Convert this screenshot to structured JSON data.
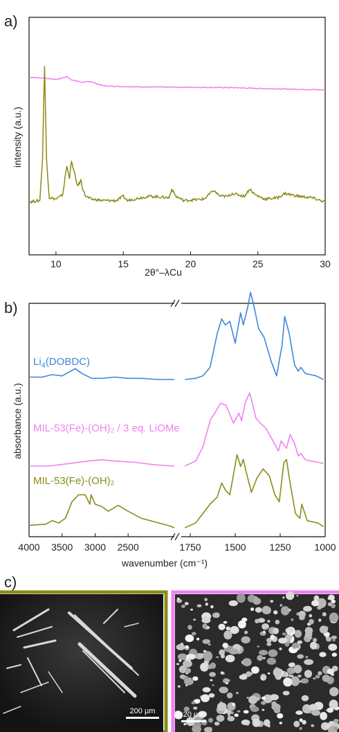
{
  "panels": {
    "a": "a)",
    "b": "b)",
    "c": "c)"
  },
  "chart_data": [
    {
      "type": "line",
      "panel": "a)",
      "xlabel": "2θ°–λCu",
      "ylabel": "intensity (a.u.)",
      "xlim": [
        8,
        30
      ],
      "xticks": [
        "10",
        "15",
        "20",
        "25",
        "30"
      ],
      "series": [
        {
          "color": "#ee82ee",
          "x": [
            8,
            9,
            10,
            10.5,
            10.8,
            11.2,
            12,
            12.6,
            13,
            13.5,
            14,
            15,
            17,
            20,
            23,
            25,
            27,
            30
          ],
          "y": [
            0.92,
            0.915,
            0.905,
            0.915,
            0.925,
            0.9,
            0.885,
            0.89,
            0.875,
            0.862,
            0.858,
            0.855,
            0.852,
            0.85,
            0.848,
            0.842,
            0.838,
            0.832
          ]
        },
        {
          "color": "#8b8b1a",
          "x": [
            8,
            8.8,
            9.0,
            9.15,
            9.3,
            9.5,
            10,
            10.5,
            10.8,
            11.0,
            11.15,
            11.35,
            11.6,
            11.85,
            12.0,
            12.2,
            12.6,
            13.5,
            14.5,
            15.0,
            15.3,
            16.3,
            17,
            18.4,
            18.6,
            18.9,
            19.5,
            21.0,
            21.7,
            22.2,
            22.8,
            23.1,
            24.0,
            24.4,
            24.8,
            25.5,
            26.5,
            27,
            28,
            29,
            30
          ],
          "y": [
            0.05,
            0.06,
            0.35,
            1.0,
            0.35,
            0.08,
            0.07,
            0.1,
            0.3,
            0.22,
            0.33,
            0.26,
            0.16,
            0.2,
            0.14,
            0.09,
            0.07,
            0.06,
            0.06,
            0.09,
            0.06,
            0.08,
            0.09,
            0.08,
            0.14,
            0.09,
            0.06,
            0.07,
            0.13,
            0.09,
            0.09,
            0.11,
            0.09,
            0.14,
            0.1,
            0.07,
            0.08,
            0.11,
            0.09,
            0.08,
            0.05
          ]
        }
      ]
    },
    {
      "type": "line",
      "panel": "b)",
      "xlabel": "wavenumber (cm⁻¹)",
      "ylabel": "absorbance (a.u.)",
      "axis_break": true,
      "xticks": [
        "4000",
        "3500",
        "3000",
        "2500",
        "1750",
        "1500",
        "1250",
        "1000"
      ],
      "series": [
        {
          "name": "Li₄(DOBDC)",
          "color": "#3f87d8",
          "hi": {
            "x": [
              4000,
              3800,
              3650,
              3500,
              3300,
              3200,
              3050,
              2900,
              2700,
              2500,
              2300,
              2050,
              1800
            ],
            "y": [
              0.02,
              0.02,
              0.04,
              0.03,
              0.09,
              0.05,
              0.01,
              0.01,
              0.02,
              0.01,
              0.01,
              0.0,
              0.0
            ]
          },
          "lo": {
            "x": [
              1780,
              1720,
              1680,
              1640,
              1600,
              1575,
              1555,
              1530,
              1500,
              1470,
              1455,
              1430,
              1415,
              1395,
              1370,
              1340,
              1300,
              1270,
              1240,
              1225,
              1200,
              1170,
              1150,
              1135,
              1110,
              1080,
              1050,
              1010
            ],
            "y": [
              0.0,
              0.01,
              0.03,
              0.1,
              0.38,
              0.5,
              0.45,
              0.48,
              0.3,
              0.55,
              0.45,
              0.6,
              0.72,
              0.6,
              0.42,
              0.35,
              0.15,
              0.03,
              0.28,
              0.52,
              0.38,
              0.12,
              0.07,
              0.1,
              0.05,
              0.04,
              0.03,
              0.0
            ]
          }
        },
        {
          "name": "MIL-53(Fe)-(OH)₂ / 3 eq. LiOMe",
          "color": "#ee82ee",
          "hi": {
            "x": [
              4000,
              3700,
              3400,
              3100,
              2900,
              2700,
              2400,
              2100,
              1800
            ],
            "y": [
              0.0,
              0.0,
              0.02,
              0.04,
              0.05,
              0.04,
              0.03,
              0.01,
              0.0
            ]
          },
          "lo": {
            "x": [
              1780,
              1720,
              1680,
              1640,
              1610,
              1580,
              1550,
              1510,
              1480,
              1465,
              1445,
              1420,
              1405,
              1385,
              1360,
              1330,
              1290,
              1260,
              1245,
              1215,
              1195,
              1170,
              1150,
              1135,
              1110,
              1080,
              1040,
              1010
            ],
            "y": [
              0.0,
              0.04,
              0.15,
              0.36,
              0.43,
              0.5,
              0.48,
              0.34,
              0.42,
              0.36,
              0.5,
              0.58,
              0.5,
              0.38,
              0.34,
              0.3,
              0.2,
              0.12,
              0.2,
              0.14,
              0.25,
              0.18,
              0.08,
              0.1,
              0.05,
              0.04,
              0.03,
              0.02
            ]
          }
        },
        {
          "name": "MIL-53(Fe)-(OH)₂",
          "color": "#8b8b1a",
          "hi": {
            "x": [
              4000,
              3750,
              3650,
              3550,
              3450,
              3350,
              3250,
              3150,
              3080,
              3060,
              3000,
              2900,
              2800,
              2650,
              2500,
              2300,
              2100,
              1900,
              1800
            ],
            "y": [
              0.02,
              0.03,
              0.06,
              0.04,
              0.08,
              0.22,
              0.28,
              0.28,
              0.2,
              0.28,
              0.2,
              0.18,
              0.14,
              0.19,
              0.14,
              0.08,
              0.05,
              0.02,
              0.0
            ]
          },
          "lo": {
            "x": [
              1780,
              1720,
              1680,
              1640,
              1600,
              1575,
              1555,
              1530,
              1510,
              1490,
              1470,
              1455,
              1440,
              1410,
              1380,
              1345,
              1310,
              1280,
              1255,
              1230,
              1215,
              1195,
              1165,
              1140,
              1130,
              1100,
              1070,
              1040,
              1010
            ],
            "y": [
              0.0,
              0.04,
              0.12,
              0.2,
              0.26,
              0.38,
              0.32,
              0.28,
              0.45,
              0.62,
              0.52,
              0.58,
              0.48,
              0.3,
              0.42,
              0.5,
              0.44,
              0.28,
              0.22,
              0.55,
              0.58,
              0.38,
              0.12,
              0.08,
              0.2,
              0.06,
              0.05,
              0.04,
              0.01
            ]
          }
        }
      ]
    }
  ],
  "sem": [
    {
      "scale_label": "200 µm",
      "border_color": "#8b8b1a"
    },
    {
      "scale_label": "20 µm",
      "border_color": "#ee82ee"
    }
  ]
}
